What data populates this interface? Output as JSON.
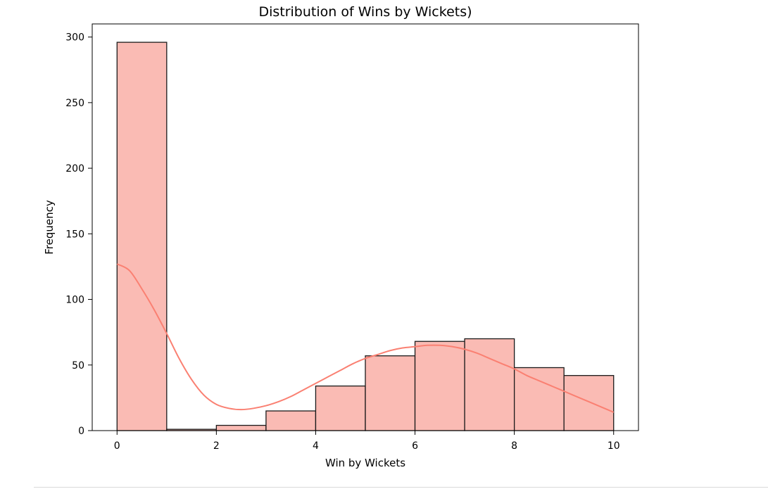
{
  "chart_data": {
    "type": "bar",
    "title": "Distribution of Wins by Wickets)",
    "xlabel": "Win by Wickets",
    "ylabel": "Frequency",
    "bins": [
      {
        "x0": 0,
        "x1": 1,
        "count": 296
      },
      {
        "x0": 1,
        "x1": 2,
        "count": 1
      },
      {
        "x0": 2,
        "x1": 3,
        "count": 4
      },
      {
        "x0": 3,
        "x1": 4,
        "count": 15
      },
      {
        "x0": 4,
        "x1": 5,
        "count": 34
      },
      {
        "x0": 5,
        "x1": 6,
        "count": 57
      },
      {
        "x0": 6,
        "x1": 7,
        "count": 68
      },
      {
        "x0": 7,
        "x1": 8,
        "count": 70
      },
      {
        "x0": 8,
        "x1": 9,
        "count": 48
      },
      {
        "x0": 9,
        "x1": 10,
        "count": 42
      }
    ],
    "kde": {
      "x": [
        0,
        0.25,
        0.5,
        0.75,
        1,
        1.25,
        1.5,
        1.75,
        2,
        2.25,
        2.5,
        2.75,
        3,
        3.25,
        3.5,
        3.75,
        4,
        4.25,
        4.5,
        4.75,
        5,
        5.25,
        5.5,
        5.75,
        6,
        6.25,
        6.5,
        6.75,
        7,
        7.25,
        7.5,
        7.75,
        8,
        8.25,
        8.5,
        8.75,
        9,
        9.25,
        9.5,
        9.75,
        10
      ],
      "y": [
        127,
        122,
        108,
        92,
        74,
        55,
        39,
        27,
        20,
        17,
        16,
        17,
        19,
        22,
        26,
        31,
        36,
        41,
        46,
        51,
        55,
        58,
        61,
        63,
        64,
        65,
        65,
        64,
        62,
        59,
        55,
        51,
        47,
        42,
        38,
        34,
        30,
        26,
        22,
        18,
        14
      ]
    },
    "xlim": [
      -0.5,
      10.5
    ],
    "ylim": [
      0,
      310
    ],
    "xticks": [
      0,
      2,
      4,
      6,
      8,
      10
    ],
    "yticks": [
      0,
      50,
      100,
      150,
      200,
      250,
      300
    ],
    "grid": false,
    "legend": "none",
    "colors": {
      "bar_fill": "#fabbb4",
      "bar_edge": "#1a1a1a",
      "kde_line": "#fa8072",
      "axis": "#000000",
      "text": "#000000"
    }
  }
}
